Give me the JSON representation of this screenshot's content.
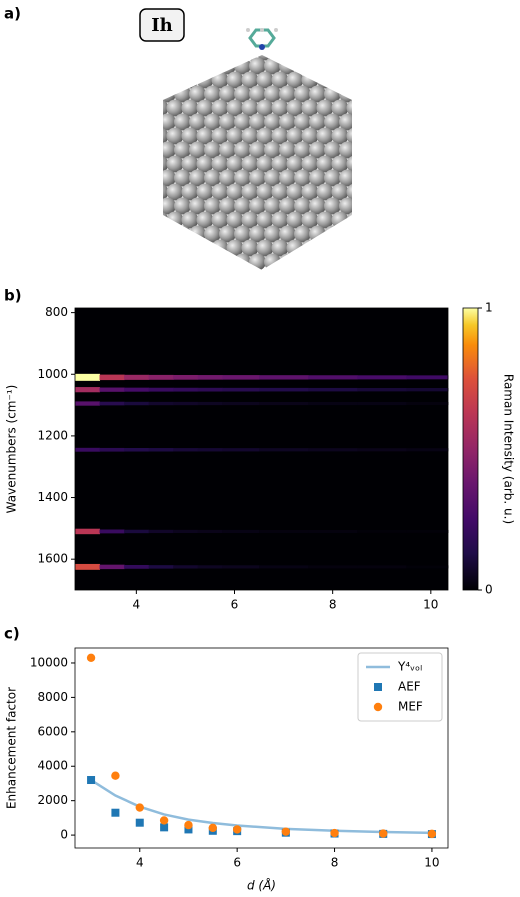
{
  "panel_a": {
    "label": "a)",
    "badge": "Ih"
  },
  "chart_data": [
    {
      "type": "heatmap",
      "panel_label": "b)",
      "ylabel": "Wavenumbers (cm⁻¹)",
      "colorbar_label": "Raman Intensity (arb. u.)",
      "x": [
        3,
        3.5,
        4,
        4.5,
        5,
        5.5,
        6,
        7,
        8,
        9,
        10
      ],
      "y": [
        1010,
        1050,
        1095,
        1245,
        1510,
        1625
      ],
      "values": [
        [
          1,
          0.62,
          0.52,
          0.47,
          0.43,
          0.4,
          0.38,
          0.34,
          0.3,
          0.27,
          0.24
        ],
        [
          0.55,
          0.32,
          0.26,
          0.22,
          0.2,
          0.18,
          0.16,
          0.14,
          0.12,
          0.1,
          0.09
        ],
        [
          0.32,
          0.16,
          0.11,
          0.08,
          0.07,
          0.06,
          0.05,
          0.04,
          0.03,
          0.03,
          0.02
        ],
        [
          0.22,
          0.17,
          0.14,
          0.12,
          0.1,
          0.09,
          0.08,
          0.06,
          0.05,
          0.04,
          0.03
        ],
        [
          0.62,
          0.22,
          0.11,
          0.07,
          0.05,
          0.04,
          0.03,
          0.02,
          0.02,
          0.01,
          0.01
        ],
        [
          0.72,
          0.36,
          0.2,
          0.12,
          0.08,
          0.06,
          0.05,
          0.03,
          0.02,
          0.02,
          0.01
        ]
      ],
      "xlim": [
        2.75,
        10.35
      ],
      "xticks": [
        4,
        6,
        8,
        10
      ],
      "ylim": [
        785,
        1700
      ],
      "yticks": [
        800,
        1000,
        1200,
        1400,
        1600
      ],
      "y_inverted": true,
      "clim": [
        0,
        1
      ],
      "cticks": [
        0,
        1
      ],
      "colormap": "inferno"
    },
    {
      "type": "scatter",
      "panel_label": "c)",
      "xlabel": "d (Å)",
      "ylabel": "Enhancement factor",
      "x": [
        3,
        3.5,
        4,
        4.5,
        5,
        5.5,
        6,
        7,
        8,
        9,
        10
      ],
      "series": [
        {
          "name": "Y⁴ᵥₒₗ",
          "marker": "line",
          "color": "#8fbcdc",
          "values": [
            3200,
            2300,
            1650,
            1200,
            900,
            700,
            560,
            360,
            250,
            180,
            130
          ]
        },
        {
          "name": "AEF",
          "marker": "square",
          "color": "#1f77b4",
          "values": [
            3200,
            1300,
            720,
            450,
            330,
            250,
            230,
            140,
            90,
            70,
            60
          ]
        },
        {
          "name": "MEF",
          "marker": "circle",
          "color": "#ff7f0e",
          "values": [
            10300,
            3450,
            1600,
            850,
            580,
            420,
            330,
            200,
            120,
            90,
            70
          ]
        }
      ],
      "xlim": [
        2.67,
        10.33
      ],
      "xticks": [
        4,
        6,
        8,
        10
      ],
      "ylim": [
        -750,
        10870
      ],
      "yticks": [
        0,
        2000,
        4000,
        6000,
        8000,
        10000
      ],
      "legend": "upper right"
    }
  ]
}
